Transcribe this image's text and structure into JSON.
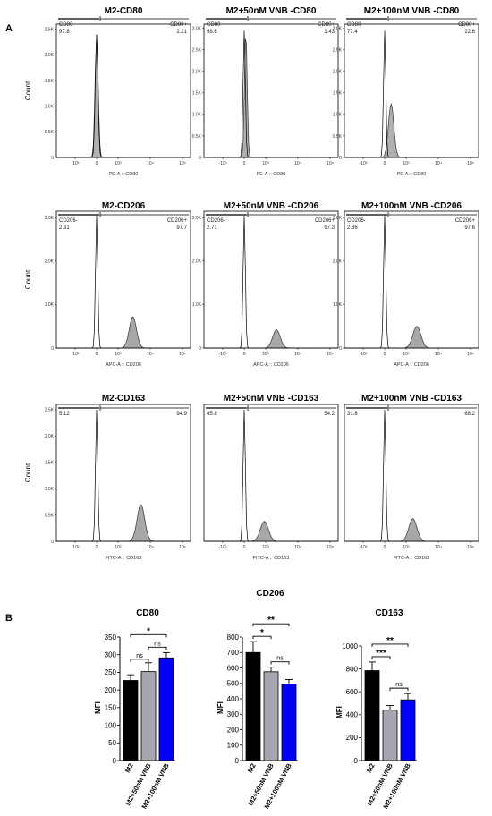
{
  "panel_a_label": "A",
  "panel_b_label": "B",
  "count_label": "Count",
  "chart_data": [
    {
      "type": "histogram",
      "row": 0,
      "col": 0,
      "title": "M2-CD80",
      "xlabel": "PE-A :: CD80",
      "y_ticks": [
        "0",
        "0.5K",
        "1.0K",
        "1.5K",
        "2.0K",
        "2.5K"
      ],
      "y_max": 2600,
      "gates": [
        {
          "label": "CD80-",
          "value": "97.8"
        },
        {
          "label": "CD80+",
          "value": "2.21"
        }
      ],
      "x_ticks": [
        "-10³",
        "0",
        "10³",
        "10⁴",
        "10⁵"
      ],
      "series": [
        {
          "name": "",
          "peak_pos": 0.0,
          "peak_height": 2400,
          "width": 0.07,
          "fill": "#b0b0b0"
        }
      ],
      "overlay": {
        "peak_pos": 0.0,
        "peak_height": 2400,
        "width": 0.06
      }
    },
    {
      "type": "histogram",
      "row": 0,
      "col": 1,
      "title": "M2+50nM VNB -CD80",
      "xlabel": "PE-A :: CD80",
      "y_ticks": [
        "0",
        "0.5K",
        "1.0K",
        "1.5K",
        "2.0K",
        "2.5K",
        "3.0K"
      ],
      "y_max": 3100,
      "gates": [
        {
          "label": "CD80-",
          "value": "98.6"
        },
        {
          "label": "CD80+",
          "value": "1.43"
        }
      ],
      "x_ticks": [
        "-10³",
        "0",
        "10³",
        "10⁴",
        "10⁵"
      ],
      "series": [
        {
          "name": "",
          "peak_pos": 0.02,
          "peak_height": 2950,
          "width": 0.06,
          "fill": "#b0b0b0"
        }
      ],
      "overlay": {
        "peak_pos": 0.0,
        "peak_height": 2950,
        "width": 0.05
      }
    },
    {
      "type": "histogram",
      "row": 0,
      "col": 2,
      "title": "M2+100nM VNB -CD80",
      "xlabel": "PE-A :: CD80",
      "y_ticks": [
        "0",
        "0.5K",
        "1.0K",
        "1.5K",
        "2.0K",
        "2.5K",
        "3.0K"
      ],
      "y_max": 3100,
      "gates": [
        {
          "label": "CD80-",
          "value": "77.4"
        },
        {
          "label": "CD80+",
          "value": "22.6"
        }
      ],
      "x_ticks": [
        "-10³",
        "0",
        "10³",
        "10⁴",
        "10⁵"
      ],
      "series": [
        {
          "name": "",
          "peak_pos": 0.08,
          "peak_height": 1250,
          "width": 0.12,
          "fill": "#b0b0b0"
        }
      ],
      "overlay": {
        "peak_pos": 0.0,
        "peak_height": 2950,
        "width": 0.05
      }
    },
    {
      "type": "histogram",
      "row": 1,
      "col": 0,
      "title": "M2-CD206",
      "xlabel": "APC-A :: CD206",
      "y_ticks": [
        "0",
        "1.0K",
        "2.0K",
        "3.0K"
      ],
      "y_max": 3150,
      "gates": [
        {
          "label": "CD206-",
          "value": "2.31"
        },
        {
          "label": "CD206+",
          "value": "97.7"
        }
      ],
      "x_ticks": [
        "-10³",
        "0",
        "10³",
        "10⁴",
        "10⁵"
      ],
      "series": [
        {
          "name": "",
          "peak_pos": 0.45,
          "peak_height": 720,
          "width": 0.16,
          "fill": "#a8a8a8"
        }
      ],
      "overlay": {
        "peak_pos": 0.0,
        "peak_height": 3050,
        "width": 0.05
      }
    },
    {
      "type": "histogram",
      "row": 1,
      "col": 1,
      "title": "M2+50nM VNB -CD206",
      "xlabel": "APC-A :: CD206",
      "y_ticks": [
        "0",
        "1.0K",
        "2.0K",
        "3.0K"
      ],
      "y_max": 3150,
      "gates": [
        {
          "label": "CD206-",
          "value": "2.71"
        },
        {
          "label": "CD206+",
          "value": "97.3"
        }
      ],
      "x_ticks": [
        "-10³",
        "0",
        "10³",
        "10⁴",
        "10⁵"
      ],
      "series": [
        {
          "name": "",
          "peak_pos": 0.4,
          "peak_height": 420,
          "width": 0.17,
          "fill": "#a8a8a8"
        }
      ],
      "overlay": {
        "peak_pos": 0.0,
        "peak_height": 3050,
        "width": 0.05
      }
    },
    {
      "type": "histogram",
      "row": 1,
      "col": 2,
      "title": "M2+100nM VNB -CD206",
      "xlabel": "APC-A :: CD206",
      "y_ticks": [
        "0",
        "1.0K",
        "2.0K",
        "3.0K"
      ],
      "y_max": 3150,
      "gates": [
        {
          "label": "CD206-",
          "value": "2.36"
        },
        {
          "label": "CD206+",
          "value": "97.6"
        }
      ],
      "x_ticks": [
        "-10³",
        "0",
        "10³",
        "10⁴",
        "10⁵"
      ],
      "series": [
        {
          "name": "",
          "peak_pos": 0.4,
          "peak_height": 500,
          "width": 0.18,
          "fill": "#a8a8a8"
        }
      ],
      "overlay": {
        "peak_pos": 0.0,
        "peak_height": 3050,
        "width": 0.05
      }
    },
    {
      "type": "histogram",
      "row": 2,
      "col": 0,
      "title": "M2-CD163",
      "xlabel": "FITC-A :: CD163",
      "y_ticks": [
        "0",
        "0.5K",
        "1.0K",
        "1.5K",
        "2.0K",
        "2.5K"
      ],
      "y_max": 2600,
      "gates": [
        {
          "label": "",
          "value": "5.12"
        },
        {
          "label": "",
          "value": "94.9"
        }
      ],
      "x_ticks": [
        "-10³",
        "0",
        "10³",
        "10⁴",
        "10⁵"
      ],
      "series": [
        {
          "name": "",
          "peak_pos": 0.55,
          "peak_height": 700,
          "width": 0.17,
          "fill": "#a8a8a8"
        }
      ],
      "overlay": {
        "peak_pos": 0.0,
        "peak_height": 2500,
        "width": 0.05
      }
    },
    {
      "type": "histogram",
      "row": 2,
      "col": 1,
      "title": "M2+50nM VNB -CD163",
      "xlabel": "FITC-A :: CD163",
      "y_ticks": [],
      "y_max": 2600,
      "gates": [
        {
          "label": "",
          "value": "45.8"
        },
        {
          "label": "",
          "value": "54.2"
        }
      ],
      "x_ticks": [
        "-10³",
        "0",
        "10³",
        "10⁴",
        "10⁵"
      ],
      "series": [
        {
          "name": "",
          "peak_pos": 0.25,
          "peak_height": 380,
          "width": 0.18,
          "fill": "#a8a8a8"
        }
      ],
      "overlay": {
        "peak_pos": 0.0,
        "peak_height": 2500,
        "width": 0.05
      }
    },
    {
      "type": "histogram",
      "row": 2,
      "col": 2,
      "title": "M2+100nM VNB -CD163",
      "xlabel": "FITC-A :: CD163",
      "y_ticks": [],
      "y_max": 2600,
      "gates": [
        {
          "label": "",
          "value": "31.8"
        },
        {
          "label": "",
          "value": "68.2"
        }
      ],
      "x_ticks": [
        "-10³",
        "0",
        "10³",
        "10⁴",
        "10⁵"
      ],
      "series": [
        {
          "name": "",
          "peak_pos": 0.35,
          "peak_height": 430,
          "width": 0.18,
          "fill": "#a8a8a8"
        }
      ],
      "overlay": {
        "peak_pos": 0.0,
        "peak_height": 2500,
        "width": 0.05
      }
    },
    {
      "type": "bar",
      "title": "CD80",
      "ylabel": "MFI",
      "ylim": [
        0,
        350
      ],
      "y_ticks": [
        0,
        50,
        100,
        150,
        200,
        250,
        300,
        350
      ],
      "categories": [
        "M2",
        "M2+50nM VNB",
        "M2+100nM VNB"
      ],
      "values": [
        227,
        252,
        291
      ],
      "errors": [
        16,
        25,
        15
      ],
      "colors": [
        "#000000",
        "#a6a6b0",
        "#0000ff"
      ],
      "comparisons": [
        {
          "from": 0,
          "to": 2,
          "label": "*"
        },
        {
          "from": 0,
          "to": 1,
          "label": "ns"
        },
        {
          "from": 1,
          "to": 2,
          "label": "ns"
        }
      ]
    },
    {
      "type": "bar",
      "title": "CD206",
      "ylabel": "MFI",
      "ylim": [
        0,
        800
      ],
      "y_ticks": [
        0,
        100,
        200,
        300,
        400,
        500,
        600,
        700,
        800
      ],
      "categories": [
        "M2",
        "M2+50nM VNB",
        "M2+100nM VNB"
      ],
      "values": [
        700,
        575,
        495
      ],
      "errors": [
        70,
        30,
        30
      ],
      "colors": [
        "#000000",
        "#a6a6b0",
        "#0000ff"
      ],
      "comparisons": [
        {
          "from": 0,
          "to": 2,
          "label": "**"
        },
        {
          "from": 0,
          "to": 1,
          "label": "*"
        },
        {
          "from": 1,
          "to": 2,
          "label": "ns"
        }
      ]
    },
    {
      "type": "bar",
      "title": "CD163",
      "ylabel": "MFI",
      "ylim": [
        0,
        1000
      ],
      "y_ticks": [
        0,
        200,
        400,
        600,
        800,
        1000
      ],
      "categories": [
        "M2",
        "M2+50nM VNB",
        "M2+100nM VNB"
      ],
      "values": [
        785,
        440,
        530
      ],
      "errors": [
        75,
        40,
        55
      ],
      "colors": [
        "#000000",
        "#a6a6b0",
        "#0000ff"
      ],
      "comparisons": [
        {
          "from": 0,
          "to": 2,
          "label": "**"
        },
        {
          "from": 0,
          "to": 1,
          "label": "***"
        },
        {
          "from": 1,
          "to": 2,
          "label": "ns"
        }
      ]
    }
  ]
}
